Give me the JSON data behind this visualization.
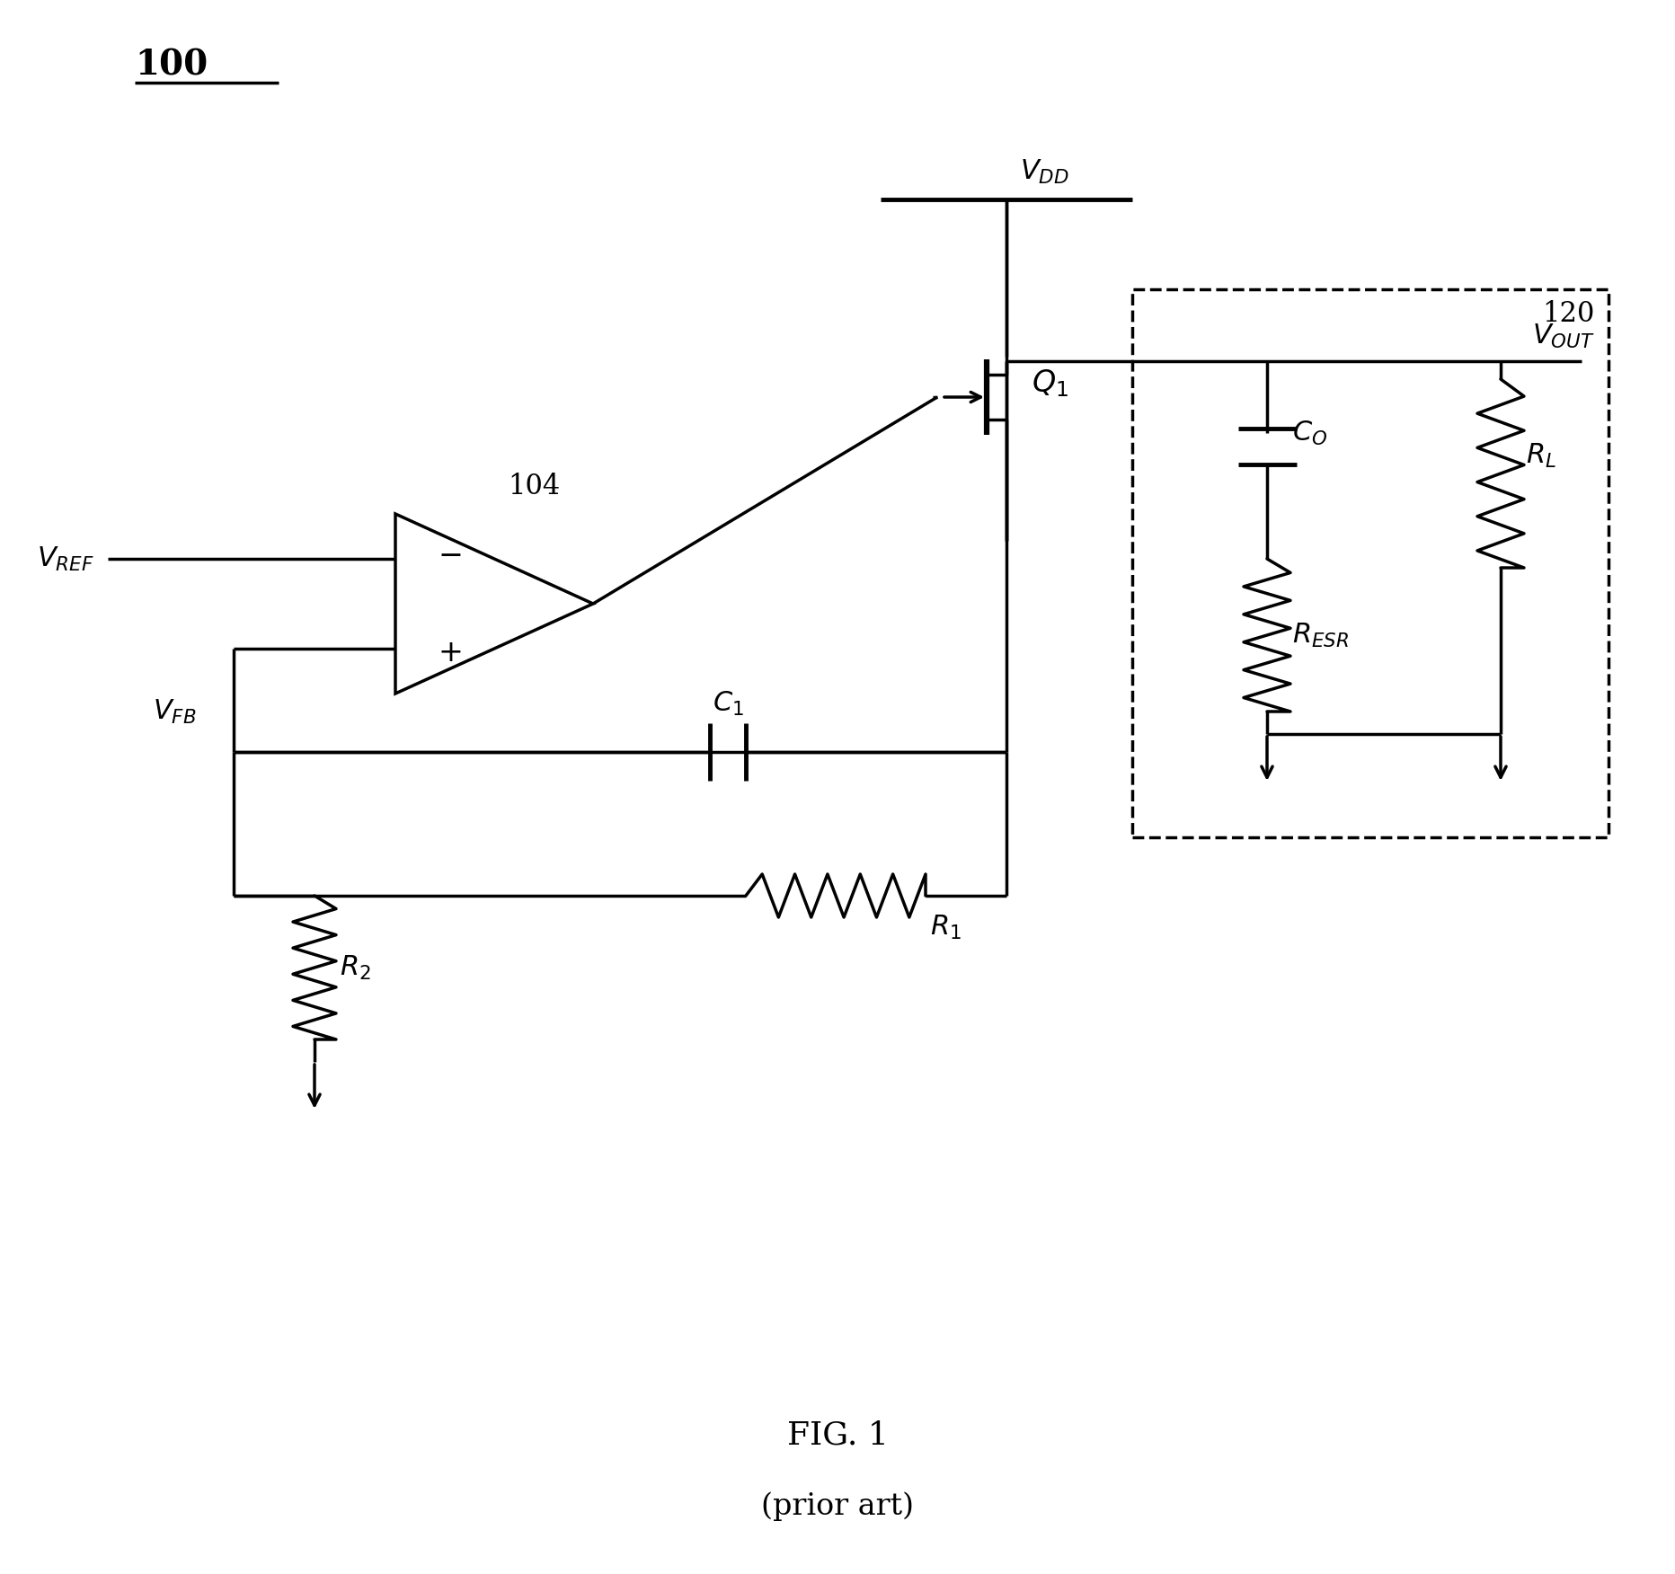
{
  "bg_color": "#ffffff",
  "lc": "#000000",
  "lw": 2.5,
  "figsize": [
    18.64,
    17.52
  ],
  "dpi": 100
}
